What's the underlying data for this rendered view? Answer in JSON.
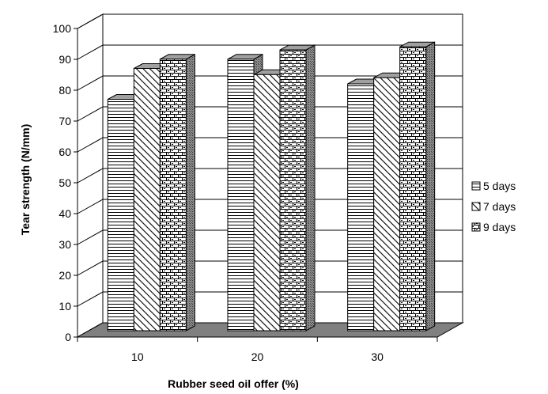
{
  "chart_data": {
    "type": "bar",
    "three_d": true,
    "categories": [
      "10",
      "20",
      "30"
    ],
    "series": [
      {
        "name": "5 days",
        "values": [
          75,
          88,
          80
        ],
        "pattern": "horizontal-lines"
      },
      {
        "name": "7 days",
        "values": [
          85,
          83,
          82
        ],
        "pattern": "diagonal-lines"
      },
      {
        "name": "9 days",
        "values": [
          88,
          91,
          92
        ],
        "pattern": "brick"
      }
    ],
    "xlabel": "Rubber seed oil offer (%)",
    "ylabel": "Tear strength (N/mm)",
    "ylim": [
      0,
      100
    ],
    "yticks": [
      0,
      10,
      20,
      30,
      40,
      50,
      60,
      70,
      80,
      90,
      100
    ],
    "grid": true,
    "legend": "right",
    "colors": {
      "bar_fill": "#ffffff",
      "bar_stroke": "#000000",
      "floor": "#808080",
      "side": "#7f7f7f"
    }
  }
}
